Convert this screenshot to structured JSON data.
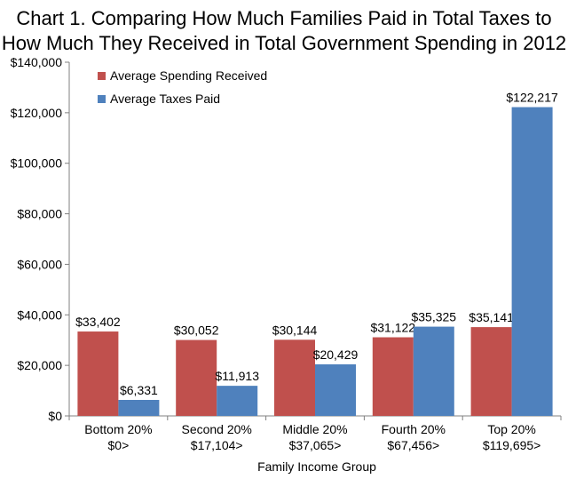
{
  "chart_data": {
    "type": "bar",
    "title_lines": [
      "Chart 1. Comparing How Much Families Paid in Total Taxes to",
      "How Much They Received in Total Government Spending in 2012"
    ],
    "xlabel": "Family Income Group",
    "ylabel": "",
    "ylim": [
      0,
      140000
    ],
    "yticks": [
      0,
      20000,
      40000,
      60000,
      80000,
      100000,
      120000,
      140000
    ],
    "ytick_labels": [
      "$0",
      "$20,000",
      "$40,000",
      "$60,000",
      "$80,000",
      "$100,000",
      "$120,000",
      "$140,000"
    ],
    "categories": [
      [
        "Bottom 20%",
        "$0>"
      ],
      [
        "Second 20%",
        "$17,104>"
      ],
      [
        "Middle 20%",
        "$37,065>"
      ],
      [
        "Fourth 20%",
        "$67,456>"
      ],
      [
        "Top 20%",
        "$119,695>"
      ]
    ],
    "series": [
      {
        "name": "Average Spending Received",
        "color": "#c0504d",
        "values": [
          33402,
          30052,
          30144,
          31122,
          35141
        ],
        "labels": [
          "$33,402",
          "$30,052",
          "$30,144",
          "$31,122",
          "$35,141"
        ]
      },
      {
        "name": "Average Taxes Paid",
        "color": "#4f81bd",
        "values": [
          6331,
          11913,
          20429,
          35325,
          122217
        ],
        "labels": [
          "$6,331",
          "$11,913",
          "$20,429",
          "$35,325",
          "$122,217"
        ]
      }
    ],
    "legend_position": "top-left",
    "grid": false
  }
}
